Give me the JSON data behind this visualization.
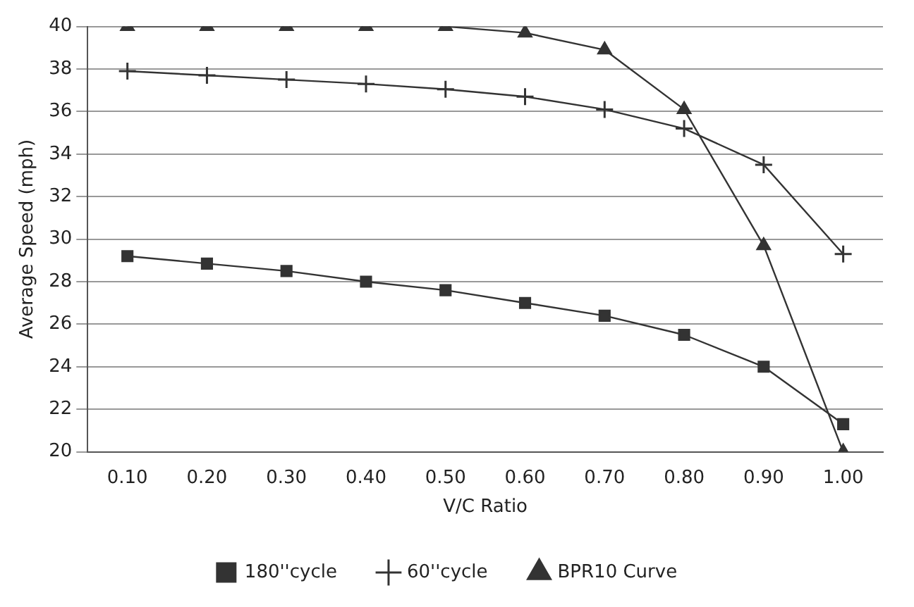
{
  "chart_data": {
    "type": "line",
    "xlabel": "V/C Ratio",
    "ylabel": "Average Speed (mph)",
    "categories": [
      "0.10",
      "0.20",
      "0.30",
      "0.40",
      "0.50",
      "0.60",
      "0.70",
      "0.80",
      "0.90",
      "1.00"
    ],
    "series": [
      {
        "name": "180''cycle",
        "color": "#333333",
        "marker": "square",
        "values": [
          29.2,
          28.85,
          28.5,
          28.0,
          27.6,
          27.0,
          26.4,
          25.5,
          24.0,
          21.3
        ]
      },
      {
        "name": "60''cycle",
        "color": "#333333",
        "marker": "cross",
        "values": [
          37.9,
          37.7,
          37.5,
          37.3,
          37.05,
          36.7,
          36.1,
          35.2,
          33.5,
          29.3
        ]
      },
      {
        "name": "BPR10 Curve",
        "color": "#333333",
        "marker": "triangle",
        "values": [
          40,
          40,
          40,
          40,
          40,
          39.7,
          38.9,
          36.1,
          29.7,
          20
        ]
      }
    ],
    "ylim": [
      20,
      40
    ],
    "yticks": [
      20,
      22,
      24,
      26,
      28,
      30,
      32,
      34,
      36,
      38,
      40
    ],
    "grid": "y",
    "legend": "bottom"
  }
}
